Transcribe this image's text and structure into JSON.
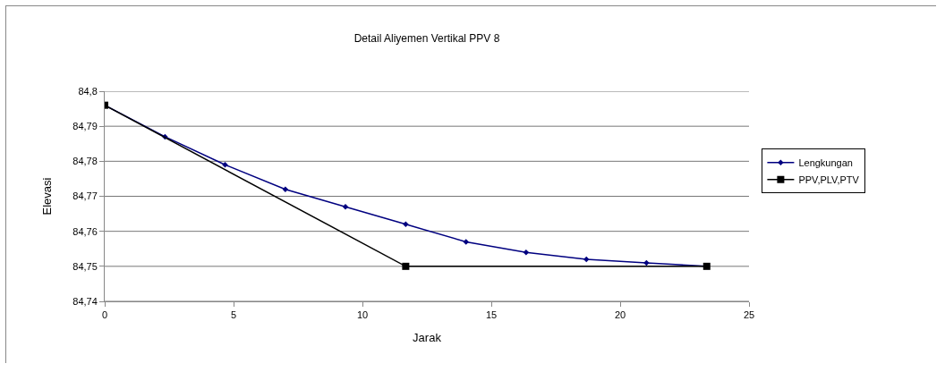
{
  "chart_data": {
    "type": "line",
    "title": "Detail Aliyemen Vertikal PPV 8",
    "xlabel": "Jarak",
    "ylabel": "Elevasi",
    "xlim": [
      0,
      25
    ],
    "xticks": [
      0,
      5,
      10,
      15,
      20,
      25
    ],
    "ylim": [
      84.74,
      84.8
    ],
    "yticks": [
      {
        "value": 84.74,
        "label": "84,74"
      },
      {
        "value": 84.75,
        "label": "84,75"
      },
      {
        "value": 84.76,
        "label": "84,76"
      },
      {
        "value": 84.77,
        "label": "84,77"
      },
      {
        "value": 84.78,
        "label": "84,78"
      },
      {
        "value": 84.79,
        "label": "84,79"
      },
      {
        "value": 84.8,
        "label": "84,8"
      }
    ],
    "grid": "y",
    "legend": "right",
    "line_style": "solid",
    "series": [
      {
        "name": "Lengkungan",
        "color": "#000080",
        "marker": "diamond",
        "x": [
          0,
          2.34,
          4.67,
          7.01,
          9.34,
          11.68,
          14.02,
          16.35,
          18.69,
          21.02,
          23.36
        ],
        "values": [
          84.796,
          84.787,
          84.779,
          84.772,
          84.767,
          84.762,
          84.757,
          84.754,
          84.752,
          84.751,
          84.75
        ]
      },
      {
        "name": "PPV,PLV,PTV",
        "color": "#000000",
        "marker": "square",
        "x": [
          0,
          11.68,
          23.36
        ],
        "values": [
          84.796,
          84.75,
          84.75
        ]
      }
    ]
  }
}
